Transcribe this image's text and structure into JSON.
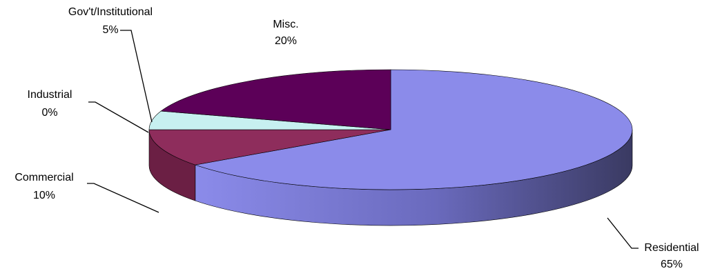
{
  "chart_data": {
    "type": "pie",
    "title": "",
    "style": "3d-exploded-tilt",
    "slices": [
      {
        "label": "Residential",
        "value": 65,
        "value_label": "65%",
        "color": "#8b8bea",
        "side_dark": "#3a3a62"
      },
      {
        "label": "Commercial",
        "value": 10,
        "value_label": "10%",
        "color": "#8e2d5c",
        "side_dark": "#6b1f44"
      },
      {
        "label": "Industrial",
        "value": 0,
        "value_label": "0%",
        "color": "#8e2d5c",
        "side_dark": "#6b1f44"
      },
      {
        "label": "Gov't/Institutional",
        "value": 5,
        "value_label": "5%",
        "color": "#c7f0f0",
        "side_dark": "#a9d6d6"
      },
      {
        "label": "Misc.",
        "value": 20,
        "value_label": "20%",
        "color": "#5c0058",
        "side_dark": "#3f003d"
      }
    ]
  }
}
